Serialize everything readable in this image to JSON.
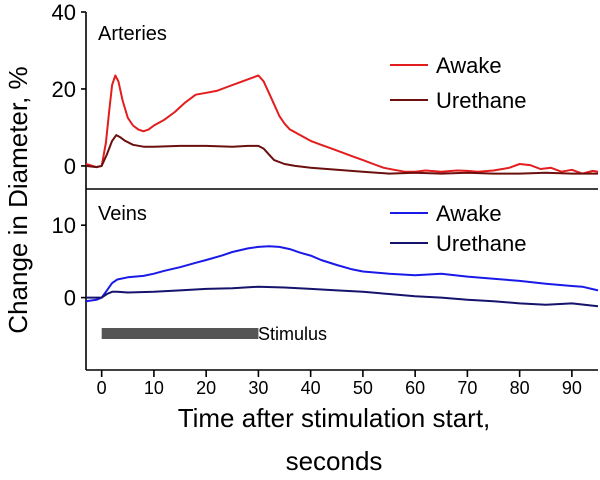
{
  "chart_data": [
    {
      "panel": "arteries",
      "type": "line",
      "panel_label": "Arteries",
      "ylabel": "Change in Diameter, %",
      "xlabel_lines": [
        "Time after stimulation start,",
        "seconds"
      ],
      "xlim": [
        -3,
        95
      ],
      "ylim": [
        -6,
        40
      ],
      "yticks": [
        0,
        20,
        40
      ],
      "xticks": [
        0,
        10,
        20,
        30,
        40,
        50,
        60,
        70,
        80,
        90
      ],
      "legend_position": "top-right",
      "series": [
        {
          "name": "Awake",
          "color": "#e31d1d",
          "x": [
            -3,
            -1,
            0,
            0.8,
            1.5,
            2.0,
            2.6,
            3.2,
            4.0,
            5.0,
            6.0,
            7.0,
            8.0,
            9.0,
            10,
            12,
            14,
            16,
            18,
            20,
            22,
            24,
            26,
            28,
            29,
            30,
            31,
            32,
            33,
            34,
            35,
            36,
            38,
            40,
            42,
            44,
            46,
            48,
            50,
            52,
            54,
            56,
            58,
            60,
            62,
            65,
            68,
            70,
            72,
            75,
            78,
            80,
            82,
            84,
            86,
            88,
            90,
            92,
            94,
            95
          ],
          "y": [
            0.5,
            -0.3,
            0,
            6,
            15,
            21,
            23.5,
            22,
            17,
            12.5,
            10.5,
            9.5,
            9,
            9.5,
            10.5,
            12,
            14,
            16.5,
            18.5,
            19,
            19.5,
            20.5,
            21.5,
            22.5,
            23,
            23.5,
            22,
            19,
            16,
            13,
            11,
            9.5,
            8,
            6.5,
            5.5,
            4.5,
            3.5,
            2.5,
            1.5,
            0.5,
            -0.5,
            -1,
            -1.5,
            -1.5,
            -1.2,
            -1.5,
            -1.2,
            -1.3,
            -1.5,
            -1.2,
            -0.5,
            0.5,
            0.2,
            -0.8,
            -0.5,
            -1.5,
            -1,
            -2,
            -1.3,
            -1.5
          ]
        },
        {
          "name": "Urethane",
          "color": "#6b0f0f",
          "x": [
            -3,
            -1,
            0,
            1,
            2,
            2.8,
            3.5,
            4.5,
            6,
            8,
            10,
            15,
            20,
            25,
            28,
            30,
            31,
            32,
            33,
            35,
            37,
            40,
            45,
            50,
            55,
            60,
            65,
            70,
            75,
            80,
            85,
            90,
            95
          ],
          "y": [
            0,
            -0.3,
            0,
            3,
            6.5,
            8,
            7.5,
            6.5,
            5.5,
            5,
            5,
            5.2,
            5.2,
            5,
            5.2,
            5.2,
            4.5,
            3,
            1.5,
            0.5,
            0,
            -0.5,
            -1,
            -1.5,
            -2,
            -1.8,
            -2,
            -1.8,
            -2,
            -2,
            -1.8,
            -2,
            -2
          ]
        }
      ]
    },
    {
      "panel": "veins",
      "type": "line",
      "panel_label": "Veins",
      "xlim": [
        -3,
        95
      ],
      "ylim": [
        -10,
        15
      ],
      "yticks": [
        0,
        10
      ],
      "legend_position": "top-right",
      "annotation": "Stimulus",
      "stimulus_range": [
        0,
        30
      ],
      "series": [
        {
          "name": "Awake",
          "color": "#1a1ae8",
          "x": [
            -3,
            -1,
            0,
            1,
            2,
            3,
            5,
            8,
            10,
            12,
            15,
            18,
            20,
            23,
            25,
            28,
            30,
            32,
            34,
            36,
            38,
            40,
            42,
            45,
            48,
            50,
            55,
            60,
            65,
            70,
            75,
            80,
            85,
            90,
            92,
            95
          ],
          "y": [
            -0.5,
            -0.3,
            0,
            1,
            2,
            2.5,
            2.8,
            3,
            3.3,
            3.7,
            4.2,
            4.8,
            5.2,
            5.8,
            6.3,
            6.8,
            7,
            7.1,
            7,
            6.7,
            6.2,
            5.8,
            5.2,
            4.5,
            3.9,
            3.6,
            3.3,
            3.1,
            3.3,
            2.9,
            2.6,
            2.3,
            1.9,
            1.6,
            1.5,
            1
          ]
        },
        {
          "name": "Urethane",
          "color": "#15136b",
          "x": [
            -3,
            0,
            1,
            2,
            3,
            5,
            10,
            15,
            20,
            25,
            30,
            35,
            40,
            45,
            50,
            55,
            60,
            65,
            70,
            75,
            80,
            85,
            90,
            95
          ],
          "y": [
            0,
            0,
            0.5,
            0.8,
            0.8,
            0.7,
            0.8,
            1,
            1.2,
            1.3,
            1.5,
            1.4,
            1.2,
            1,
            0.8,
            0.5,
            0.2,
            0,
            -0.3,
            -0.5,
            -0.8,
            -1,
            -0.8,
            -1.2
          ]
        }
      ]
    }
  ]
}
